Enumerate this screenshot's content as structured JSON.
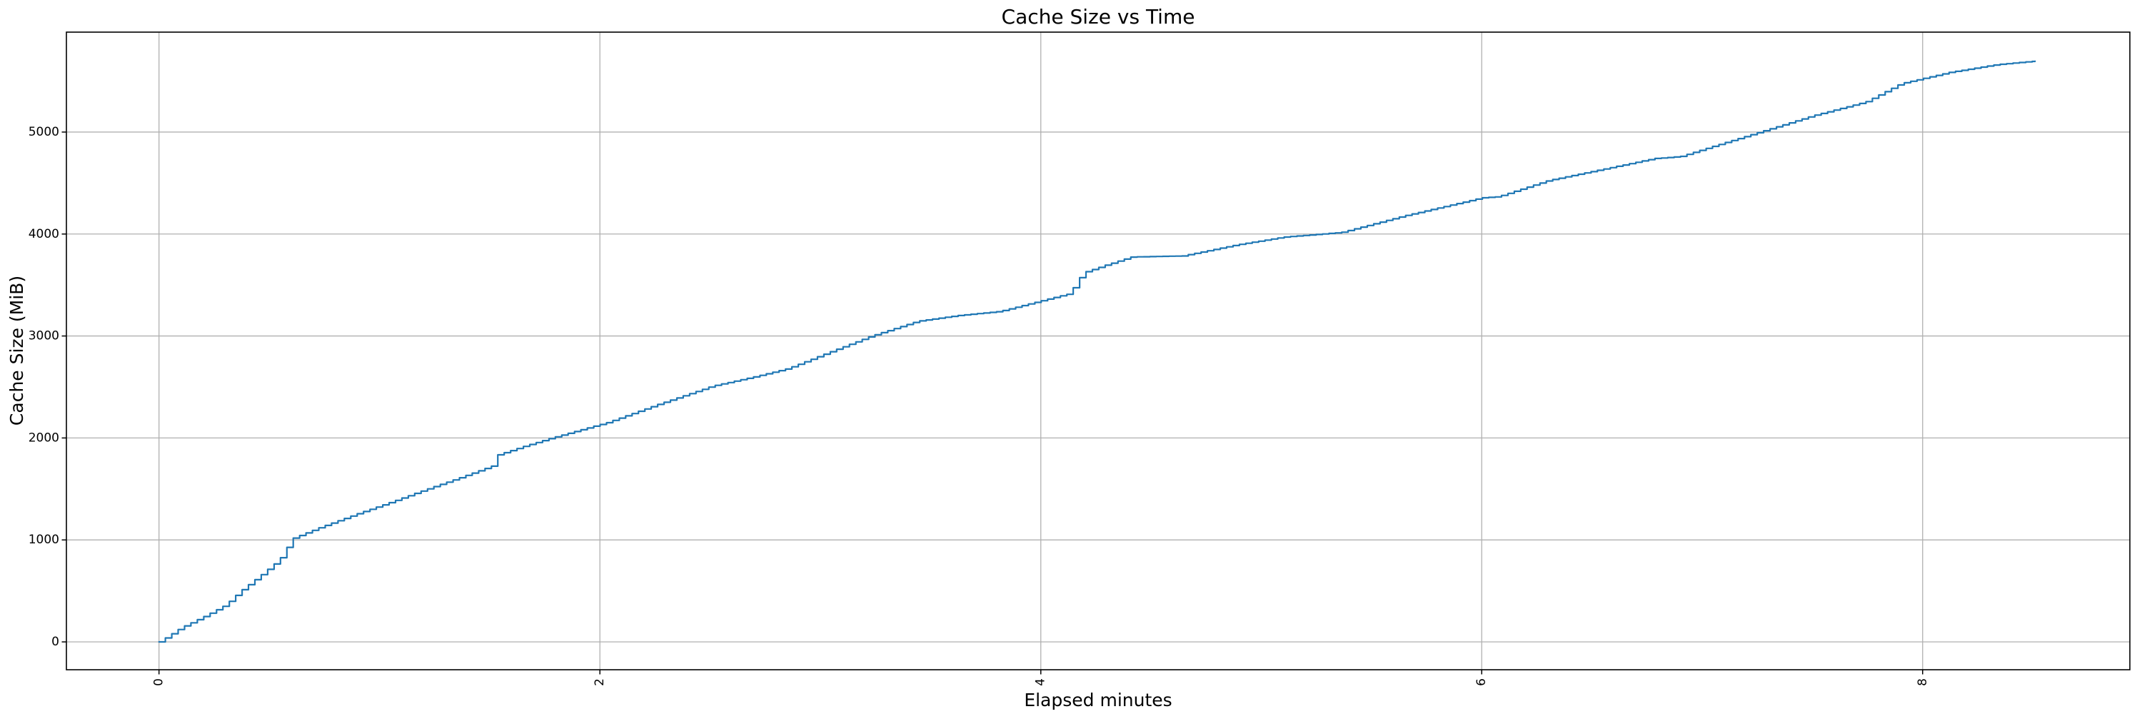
{
  "title": "Cache Size vs Time",
  "xlabel": "Elapsed minutes",
  "ylabel": "Cache Size (MiB)",
  "colors": {
    "line": "#1f77b4",
    "grid": "#b0b0b0",
    "spine": "#000000",
    "text": "#000000",
    "background": "#ffffff"
  },
  "chart_data": {
    "type": "line",
    "title": "Cache Size vs Time",
    "xlabel": "Elapsed minutes",
    "ylabel": "Cache Size (MiB)",
    "x_unit": "minutes",
    "y_unit": "MiB",
    "grid": true,
    "legend": false,
    "x_tick_rotation": 90,
    "xlim": [
      -0.42,
      8.94
    ],
    "ylim": [
      -273,
      5980
    ],
    "x_ticks": [
      0,
      2,
      4,
      6,
      8
    ],
    "y_ticks": [
      0,
      1000,
      2000,
      3000,
      4000,
      5000
    ],
    "x_range_data": [
      0,
      8.51
    ],
    "y_range_data": [
      0,
      5695
    ],
    "step_sampling_minutes": 0.029,
    "line_color": "#1f77b4",
    "series": [
      {
        "name": "cache-size-line",
        "points": [
          [
            0.0,
            0
          ],
          [
            0.03,
            40
          ],
          [
            0.1,
            140
          ],
          [
            0.2,
            245
          ],
          [
            0.3,
            360
          ],
          [
            0.37,
            500
          ],
          [
            0.45,
            635
          ],
          [
            0.52,
            760
          ],
          [
            0.56,
            845
          ],
          [
            0.6,
            1010
          ],
          [
            0.72,
            1115
          ],
          [
            0.89,
            1250
          ],
          [
            1.05,
            1370
          ],
          [
            1.19,
            1480
          ],
          [
            1.35,
            1600
          ],
          [
            1.51,
            1725
          ],
          [
            1.53,
            1830
          ],
          [
            1.65,
            1915
          ],
          [
            1.78,
            2000
          ],
          [
            2.03,
            2150
          ],
          [
            2.25,
            2320
          ],
          [
            2.51,
            2510
          ],
          [
            2.7,
            2600
          ],
          [
            2.85,
            2680
          ],
          [
            3.05,
            2850
          ],
          [
            3.23,
            3000
          ],
          [
            3.44,
            3145
          ],
          [
            3.62,
            3200
          ],
          [
            3.81,
            3240
          ],
          [
            4.1,
            3400
          ],
          [
            4.13,
            3415
          ],
          [
            4.19,
            3620
          ],
          [
            4.3,
            3700
          ],
          [
            4.41,
            3775
          ],
          [
            4.64,
            3785
          ],
          [
            4.89,
            3895
          ],
          [
            5.1,
            3970
          ],
          [
            5.36,
            4015
          ],
          [
            5.65,
            4180
          ],
          [
            6.0,
            4355
          ],
          [
            6.07,
            4365
          ],
          [
            6.3,
            4525
          ],
          [
            6.57,
            4645
          ],
          [
            6.78,
            4740
          ],
          [
            6.9,
            4760
          ],
          [
            7.04,
            4855
          ],
          [
            7.26,
            5000
          ],
          [
            7.5,
            5160
          ],
          [
            7.74,
            5295
          ],
          [
            7.9,
            5475
          ],
          [
            8.12,
            5585
          ],
          [
            8.33,
            5660
          ],
          [
            8.45,
            5685
          ],
          [
            8.51,
            5695
          ]
        ]
      }
    ]
  }
}
